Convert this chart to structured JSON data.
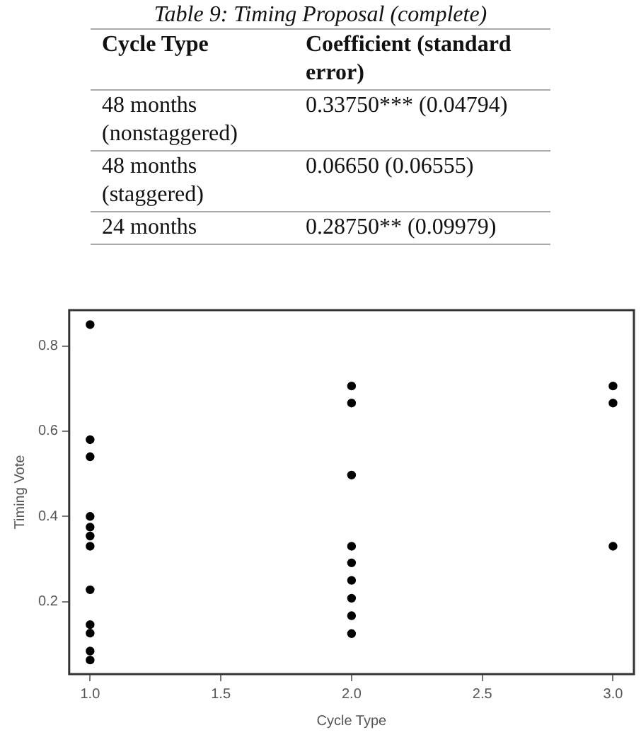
{
  "chart_data": [
    {
      "type": "other",
      "title": "Table 9: Timing Proposal (complete)",
      "annotations": [
        "Cycle Type",
        "Coefficient (standard error)",
        "48 months (nonstaggered)",
        "0.33750*** (0.04794)",
        "48 months (staggered)",
        "0.06650 (0.06555)",
        "24 months",
        "0.28750** (0.09979)"
      ]
    },
    {
      "type": "scatter",
      "xlabel": "Cycle Type",
      "ylabel": "Timing Vote",
      "xlim": [
        0.92,
        3.08
      ],
      "ylim": [
        0.03,
        0.884
      ],
      "xticks": [
        {
          "value": 1,
          "label": "1.0"
        },
        {
          "value": 1.5,
          "label": "1.5"
        },
        {
          "value": 2,
          "label": "2.0"
        },
        {
          "value": 2.5,
          "label": "2.5"
        },
        {
          "value": 3,
          "label": "3.0"
        }
      ],
      "yticks": [
        0.2,
        0.4,
        0.6,
        0.8
      ],
      "grid": false,
      "marker": "circle",
      "series": [
        {
          "color": "#000000",
          "x": [
            1,
            1,
            1,
            1,
            1,
            1,
            1,
            1,
            1,
            1,
            1,
            1,
            2,
            2,
            2,
            2,
            2,
            2,
            2,
            2,
            2,
            3,
            3,
            3
          ],
          "values": [
            0.85,
            0.58,
            0.54,
            0.4,
            0.375,
            0.354,
            0.33,
            0.228,
            0.146,
            0.126,
            0.084,
            0.063,
            0.706,
            0.666,
            0.497,
            0.33,
            0.291,
            0.25,
            0.208,
            0.167,
            0.125,
            0.706,
            0.666,
            0.33
          ]
        }
      ]
    }
  ]
}
